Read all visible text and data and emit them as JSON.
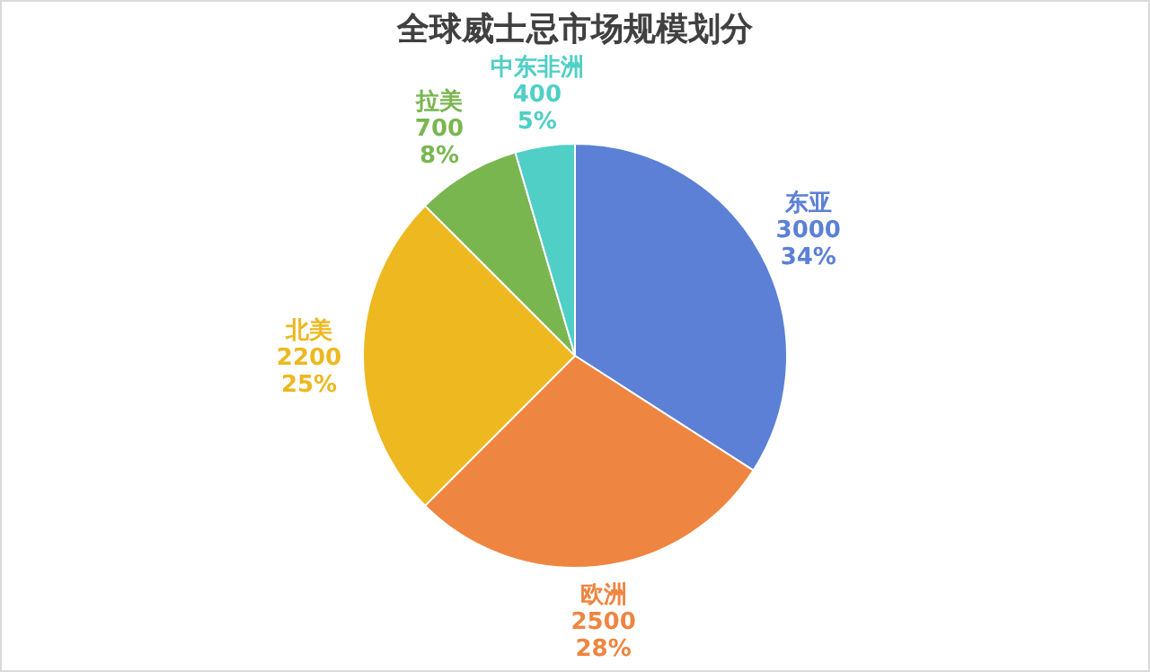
{
  "chart_data": {
    "type": "pie",
    "title": "全球威士忌市场规模划分",
    "categories": [
      "东亚",
      "欧洲",
      "北美",
      "拉美",
      "中东非洲"
    ],
    "values": [
      3000,
      2500,
      2200,
      700,
      400
    ],
    "value_labels": [
      "3000\n34%",
      "2500\n28%",
      "2200\n25%",
      "700\n8%",
      "400\n5%"
    ],
    "colors": [
      "#5b80d6",
      "#ee8540",
      "#edb820",
      "#7ab650",
      "#4fcfc6"
    ]
  }
}
